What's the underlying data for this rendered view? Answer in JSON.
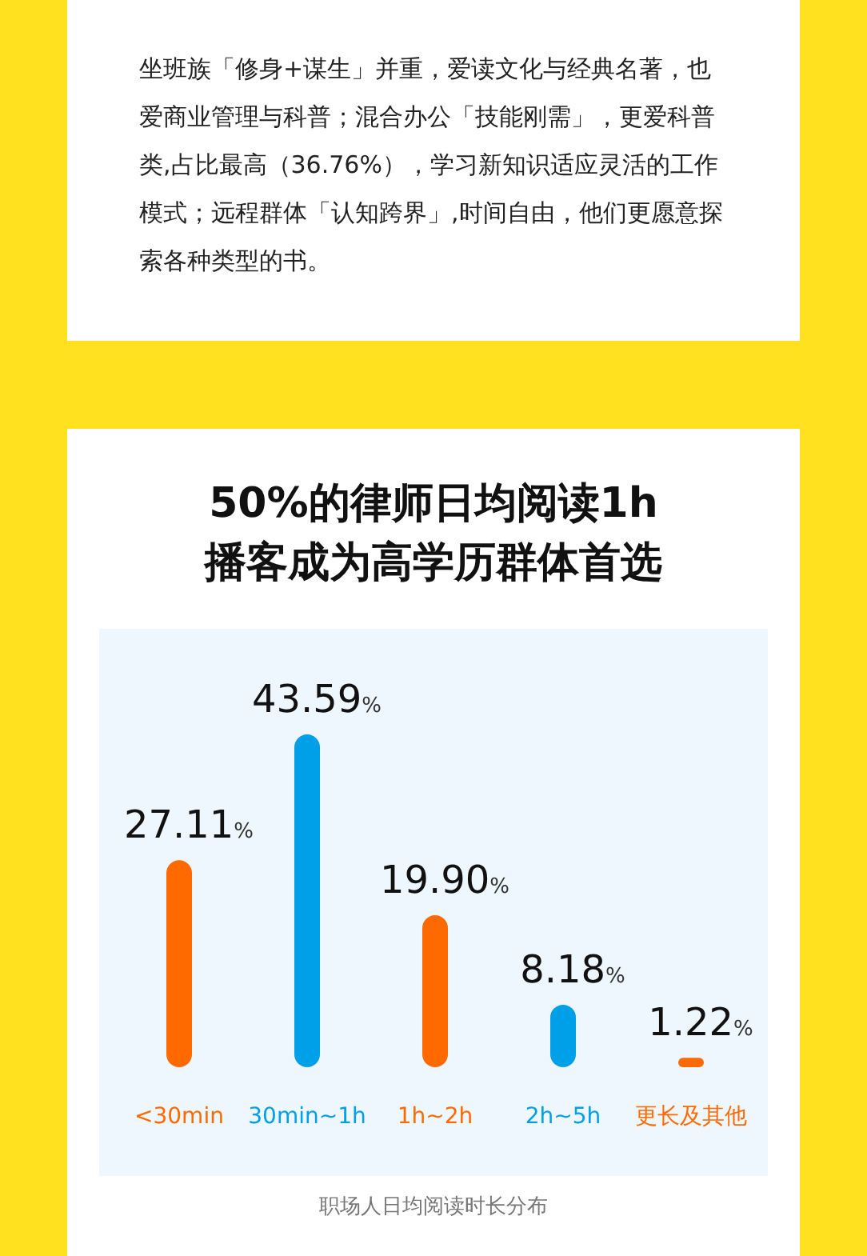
{
  "chart_data": [
    {
      "type": "other",
      "annotations": [
        "坐班族「修身+谋生」并重，爱读文化与经典名著，也爱商业管理与科普；混合办公「技能刚需」，更爱科普类,占比最高（36.76%），学习新知识适应灵活的工作模式；远程群体「认知跨界」,时间自由，他们更愿意探索各种类型的书。"
      ]
    },
    {
      "type": "bar",
      "title": "50%的律师日均阅读1h\n播客成为高学历群体首选",
      "categories": [
        "<30min",
        "30min~1h",
        "1h~2h",
        "2h~5h",
        "更长及其他"
      ],
      "values": [
        27.11,
        43.59,
        19.9,
        8.18,
        1.22
      ],
      "colors": [
        "#ff6a00",
        "#00a0e9",
        "#ff6a00",
        "#00a0e9",
        "#ff6a00"
      ],
      "value_labels": [
        "27.11%",
        "43.59%",
        "19.90%",
        "8.18%",
        "1.22%"
      ],
      "annotations": [
        "职场人日均阅读时长分布"
      ]
    }
  ]
}
